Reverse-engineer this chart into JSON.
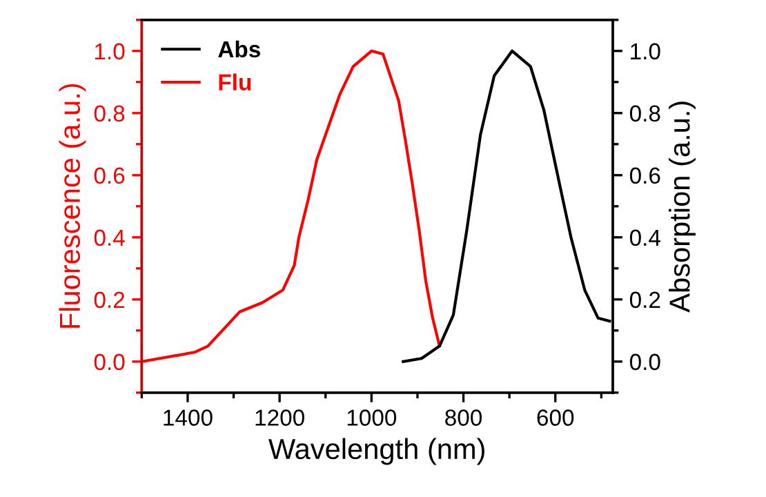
{
  "chart_data": {
    "type": "line",
    "xlabel": "Wavelength (nm)",
    "ylabel": "Fluorescence (a.u.)",
    "y2label": "Absorption (a.u.)",
    "xlim": [
      1500,
      475
    ],
    "xticks": [
      1400,
      1200,
      1000,
      800,
      600
    ],
    "ylim": [
      -0.1,
      1.1
    ],
    "yticks": [
      {
        "value": 0,
        "label": "0.0"
      },
      {
        "value": 0.2,
        "label": "0.2"
      },
      {
        "value": 0.4,
        "label": "0.4"
      },
      {
        "value": 0.6,
        "label": "0.6"
      },
      {
        "value": 0.8,
        "label": "0.8"
      },
      {
        "value": 1.0,
        "label": "1.0"
      }
    ],
    "y2lim": [
      -0.1,
      1.1
    ],
    "y2ticks": [
      {
        "value": 0,
        "label": "0.0"
      },
      {
        "value": 0.2,
        "label": "0.2"
      },
      {
        "value": 0.4,
        "label": "0.4"
      },
      {
        "value": 0.6,
        "label": "0.6"
      },
      {
        "value": 0.8,
        "label": "0.8"
      },
      {
        "value": 1.0,
        "label": "1.0"
      }
    ],
    "legend": "top left",
    "grid": false,
    "marker": "none",
    "line_style": "solid",
    "series": [
      {
        "name": "Abs",
        "color": "#000000",
        "axis": "y2",
        "x": [
          931,
          891,
          852,
          822,
          793,
          763,
          733,
          694,
          654,
          625,
          595,
          566,
          536,
          507,
          482
        ],
        "values": [
          0.0,
          0.01,
          0.05,
          0.15,
          0.42,
          0.73,
          0.92,
          1.0,
          0.95,
          0.81,
          0.6,
          0.4,
          0.23,
          0.14,
          0.13
        ]
      },
      {
        "name": "Flu",
        "color": "#ff0000",
        "x": [
          1499,
          1385,
          1356,
          1287,
          1237,
          1193,
          1168,
          1158,
          1138,
          1119,
          1069,
          1040,
          1000,
          975,
          941,
          926,
          911,
          896,
          882,
          867,
          852
        ],
        "values": [
          0.0,
          0.03,
          0.05,
          0.16,
          0.19,
          0.23,
          0.31,
          0.4,
          0.52,
          0.65,
          0.86,
          0.95,
          1.0,
          0.99,
          0.84,
          0.71,
          0.57,
          0.42,
          0.26,
          0.14,
          0.05
        ]
      }
    ]
  }
}
